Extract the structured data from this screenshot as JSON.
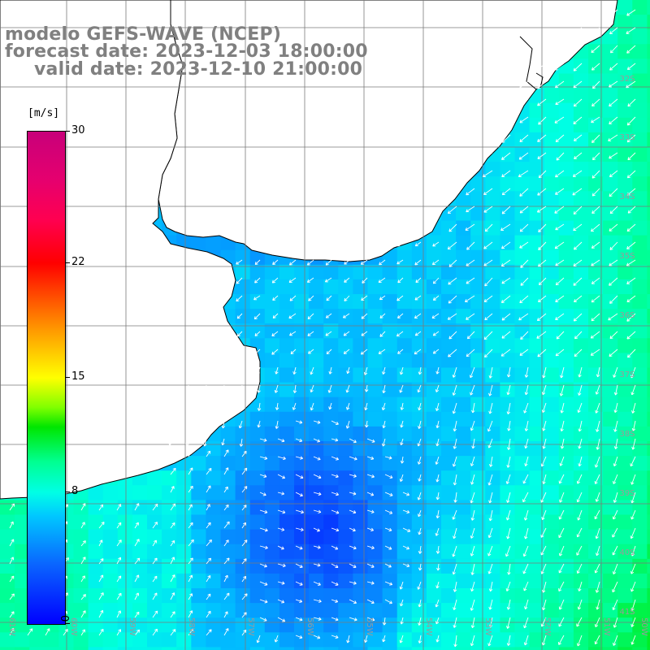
{
  "header": {
    "line1": "modelo GEFS-WAVE (NCEP)",
    "line2": "forecast date: 2023-12-03 18:00:00",
    "line3": "valid date: 2023-12-10 21:00:00"
  },
  "colorbar": {
    "unit": "[m/s]",
    "min": 0,
    "max": 30,
    "ticks": [
      {
        "value": 30,
        "label": "30"
      },
      {
        "value": 22,
        "label": "22"
      },
      {
        "value": 15,
        "label": "15"
      },
      {
        "value": 8,
        "label": "8"
      },
      {
        "value": 0,
        "label": "0"
      }
    ]
  },
  "map": {
    "variable": "wind speed and direction",
    "lat_labels": [
      "32S",
      "33S",
      "34S",
      "35S",
      "36S",
      "37S",
      "38S",
      "39S",
      "40S",
      "41S"
    ],
    "lon_labels": [
      "61W",
      "60W",
      "59W",
      "58W",
      "57W",
      "56W",
      "55W",
      "54W",
      "53W",
      "52W",
      "51W",
      "50W"
    ],
    "land_color": "#ffffff",
    "coast_color": "#000000",
    "grid_color": "#808080"
  }
}
